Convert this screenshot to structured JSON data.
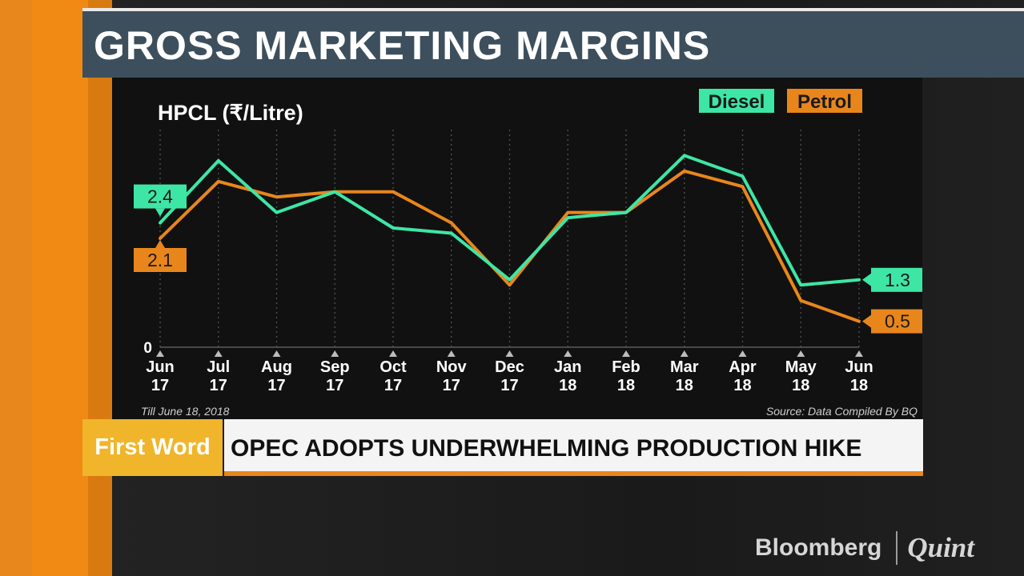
{
  "header": {
    "title": "GROSS MARKETING MARGINS"
  },
  "chart_data": {
    "type": "line",
    "title": "HPCL (₹/Litre)",
    "categories": [
      [
        "Jun",
        "17"
      ],
      [
        "Jul",
        "17"
      ],
      [
        "Aug",
        "17"
      ],
      [
        "Sep",
        "17"
      ],
      [
        "Oct",
        "17"
      ],
      [
        "Nov",
        "17"
      ],
      [
        "Dec",
        "17"
      ],
      [
        "Jan",
        "18"
      ],
      [
        "Feb",
        "18"
      ],
      [
        "Mar",
        "18"
      ],
      [
        "Apr",
        "18"
      ],
      [
        "May",
        "18"
      ],
      [
        "Jun",
        "18"
      ]
    ],
    "series": [
      {
        "name": "Diesel",
        "color": "#3ee6a6",
        "values": [
          2.4,
          3.6,
          2.6,
          3.0,
          2.3,
          2.2,
          1.3,
          2.5,
          2.6,
          3.7,
          3.3,
          1.2,
          1.3
        ],
        "start_label": "2.4",
        "end_label": "1.3"
      },
      {
        "name": "Petrol",
        "color": "#e8861c",
        "values": [
          2.1,
          3.2,
          2.9,
          3.0,
          3.0,
          2.4,
          1.2,
          2.6,
          2.6,
          3.4,
          3.1,
          0.9,
          0.5
        ],
        "start_label": "2.1",
        "end_label": "0.5"
      }
    ],
    "ylim": [
      0,
      4.2
    ],
    "y_tick_labels": [
      "0"
    ],
    "grid": true,
    "legend": "top-right",
    "footnote_left": "Till June 18, 2018",
    "footnote_right": "Source: Data Compiled By BQ"
  },
  "ticker": {
    "tag": "First Word",
    "headline": "OPEC ADOPTS UNDERWHELMING PRODUCTION HIKE"
  },
  "logo": {
    "part1": "Bloomberg",
    "part2": "Quint"
  }
}
